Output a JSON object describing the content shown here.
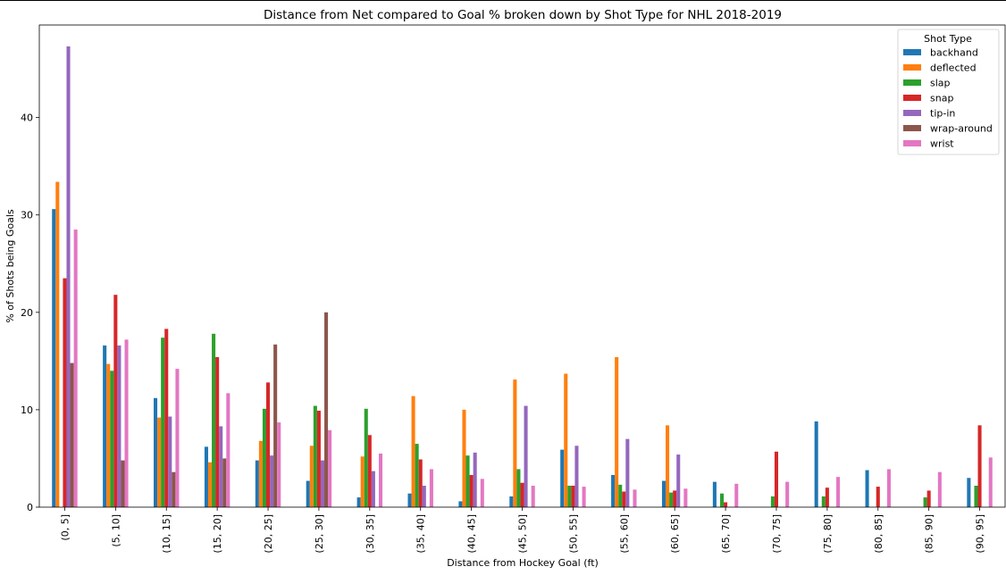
{
  "chart_data": {
    "type": "bar",
    "title": "Distance from Net compared to Goal % broken down by Shot Type for NHL 2018-2019",
    "xlabel": "Distance from Hockey Goal (ft)",
    "ylabel": "% of Shots being Goals",
    "ylim": [
      0,
      49.5
    ],
    "yticks": [
      0,
      10,
      20,
      30,
      40
    ],
    "grid": false,
    "legend": {
      "title": "Shot Type",
      "placement": "top-right"
    },
    "categories": [
      "(0, 5]",
      "(5, 10]",
      "(10, 15]",
      "(15, 20]",
      "(20, 25]",
      "(25, 30]",
      "(30, 35]",
      "(35, 40]",
      "(40, 45]",
      "(45, 50]",
      "(50, 55]",
      "(55, 60]",
      "(60, 65]",
      "(65, 70]",
      "(70, 75]",
      "(75, 80]",
      "(80, 85]",
      "(85, 90]",
      "(90, 95]"
    ],
    "series": [
      {
        "name": "backhand",
        "color": "#1f77b4",
        "values": [
          30.6,
          16.6,
          11.2,
          6.2,
          4.8,
          2.7,
          1.0,
          1.4,
          0.6,
          1.1,
          5.9,
          3.3,
          2.7,
          2.6,
          0,
          8.8,
          3.8,
          0,
          3.0
        ]
      },
      {
        "name": "deflected",
        "color": "#ff7f0e",
        "values": [
          33.4,
          14.7,
          9.2,
          4.6,
          6.8,
          6.3,
          5.2,
          11.4,
          10.0,
          13.1,
          13.7,
          15.4,
          8.4,
          0,
          0,
          0,
          0,
          0,
          0
        ]
      },
      {
        "name": "slap",
        "color": "#2ca02c",
        "values": [
          0,
          14.0,
          17.4,
          17.8,
          10.1,
          10.4,
          10.1,
          6.5,
          5.3,
          3.9,
          2.2,
          2.3,
          1.5,
          1.4,
          1.1,
          1.1,
          0,
          1.0,
          2.2
        ]
      },
      {
        "name": "snap",
        "color": "#d62728",
        "values": [
          23.5,
          21.8,
          18.3,
          15.4,
          12.8,
          9.9,
          7.4,
          4.9,
          3.3,
          2.5,
          2.2,
          1.6,
          1.7,
          0.5,
          5.7,
          2.0,
          2.1,
          1.7,
          8.4
        ]
      },
      {
        "name": "tip-in",
        "color": "#9467bd",
        "values": [
          47.3,
          16.6,
          9.3,
          8.3,
          5.3,
          4.8,
          3.7,
          2.2,
          5.6,
          10.4,
          6.3,
          7.0,
          5.4,
          0,
          0,
          0,
          0,
          0,
          0
        ]
      },
      {
        "name": "wrap-around",
        "color": "#8c564b",
        "values": [
          14.8,
          4.8,
          3.6,
          5.0,
          16.7,
          20.0,
          0,
          0,
          0,
          0,
          0,
          0,
          0,
          0,
          0,
          0,
          0,
          0,
          0
        ]
      },
      {
        "name": "wrist",
        "color": "#e377c2",
        "values": [
          28.5,
          17.2,
          14.2,
          11.7,
          8.7,
          7.9,
          5.5,
          3.9,
          2.9,
          2.2,
          2.1,
          1.8,
          1.9,
          2.4,
          2.6,
          3.1,
          3.9,
          3.6,
          5.1
        ]
      }
    ]
  }
}
